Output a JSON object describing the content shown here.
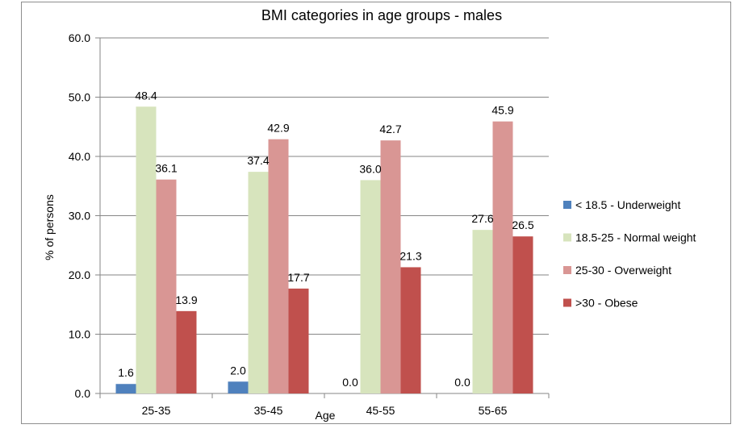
{
  "chart_data": {
    "type": "bar",
    "title": "BMI categories in age groups - males",
    "xlabel": "Age",
    "ylabel": "% of persons",
    "ylim": [
      0,
      60
    ],
    "ytick_step": 10,
    "categories": [
      "25-35",
      "35-45",
      "45-55",
      "55-65"
    ],
    "series": [
      {
        "name": "< 18.5 - Underweight",
        "color": "#4f81bd",
        "values": [
          1.6,
          2.0,
          0.0,
          0.0
        ]
      },
      {
        "name": "18.5-25 - Normal weight",
        "color": "#d7e4bd",
        "values": [
          48.4,
          37.4,
          36.0,
          27.6
        ]
      },
      {
        "name": "25-30 - Overweight",
        "color": "#d99694",
        "values": [
          36.1,
          42.9,
          42.7,
          45.9
        ]
      },
      {
        "name": ">30 - Obese",
        "color": "#c0504d",
        "values": [
          13.9,
          17.7,
          21.3,
          26.5
        ]
      }
    ],
    "grid": true,
    "legend_position": "right"
  }
}
